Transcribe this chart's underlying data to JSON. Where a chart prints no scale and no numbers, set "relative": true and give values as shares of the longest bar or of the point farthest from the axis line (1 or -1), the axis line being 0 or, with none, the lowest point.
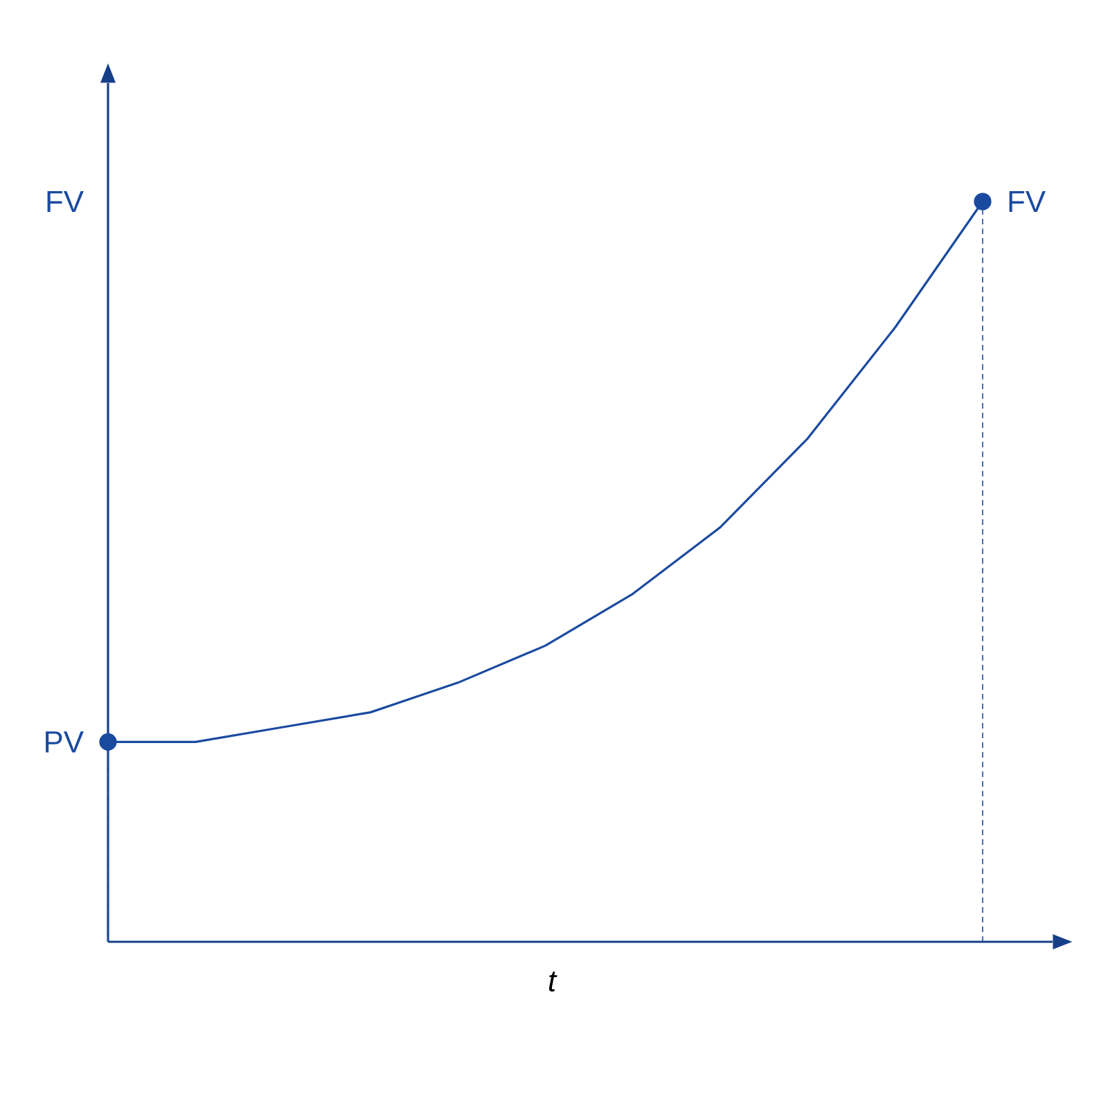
{
  "chart_data": {
    "type": "line",
    "relative": true,
    "xlabel": "t",
    "categories": [
      null,
      null,
      null,
      null,
      null,
      null,
      null,
      null,
      null,
      null,
      null
    ],
    "series": [
      {
        "color": "#1a4aa0",
        "values": [
          0.27,
          0.27,
          0.29,
          0.31,
          0.35,
          0.4,
          0.47,
          0.56,
          0.68,
          0.83,
          1
        ]
      }
    ],
    "annotations": [
      "FV",
      "PV",
      "FV"
    ]
  }
}
